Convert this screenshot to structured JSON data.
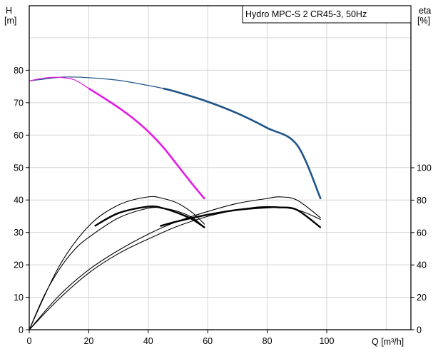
{
  "chart_data": {
    "type": "line",
    "title": "Hydro MPC-S 2 CR45-3, 50Hz",
    "left_axis_label": [
      "H",
      "[m]"
    ],
    "right_axis_label": [
      "eta",
      "[%]"
    ],
    "x_axis_label": "Q [m³/h]",
    "xlim": [
      0,
      128
    ],
    "ylim_left": [
      0,
      90
    ],
    "ylim_right": [
      0,
      200
    ],
    "x_ticks": [
      "0",
      "20",
      "40",
      "60",
      "80",
      "100"
    ],
    "x_tick_values": [
      0,
      20,
      40,
      60,
      80,
      100
    ],
    "y_ticks_left": [
      "0",
      "10",
      "20",
      "30",
      "40",
      "50",
      "60",
      "70",
      "80"
    ],
    "y_tick_values_left": [
      0,
      10,
      20,
      30,
      40,
      50,
      60,
      70,
      80
    ],
    "y_ticks_right": [
      "0",
      "20",
      "40",
      "60",
      "80",
      "100"
    ],
    "y_tick_values_right": [
      0,
      20,
      40,
      60,
      80,
      100
    ],
    "grid": true,
    "colors": {
      "blue_curve": "#1f5488",
      "magenta_curve": "#e51ae5",
      "black_curve": "#000000"
    },
    "series": [
      {
        "axis": "left",
        "color": "#1f5488",
        "width": 1.2,
        "x": [
          0,
          10,
          15,
          20,
          30,
          40,
          45
        ],
        "y": [
          76.7,
          77.8,
          77.9,
          77.7,
          76.9,
          75.3,
          74.4
        ]
      },
      {
        "axis": "left",
        "color": "#1f5488",
        "width": 2.6,
        "x": [
          45,
          50,
          60,
          70,
          80,
          90,
          98
        ],
        "y": [
          74.4,
          73.2,
          70.3,
          66.7,
          62.2,
          57.0,
          40.3
        ]
      },
      {
        "axis": "left",
        "color": "#e51ae5",
        "width": 1.2,
        "x": [
          0,
          5,
          10,
          15,
          20
        ],
        "y": [
          76.7,
          77.6,
          77.8,
          77.1,
          74.4
        ]
      },
      {
        "axis": "left",
        "color": "#e51ae5",
        "width": 2.6,
        "x": [
          20,
          25,
          30,
          35,
          40,
          45,
          50,
          55,
          59
        ],
        "y": [
          74.4,
          71.5,
          68.5,
          65.1,
          61.1,
          56.3,
          50.5,
          44.7,
          40.3
        ]
      },
      {
        "axis": "right",
        "color": "#000000",
        "width": 1.1,
        "x": [
          0,
          10,
          20,
          30,
          40,
          45,
          50,
          55,
          59
        ],
        "y": [
          0,
          39,
          64,
          77,
          82,
          81,
          78,
          72,
          65
        ]
      },
      {
        "axis": "right",
        "color": "#000000",
        "width": 1.1,
        "x": [
          0,
          5,
          10,
          15,
          20,
          30,
          40,
          45,
          50,
          55,
          59
        ],
        "y": [
          0,
          21,
          37,
          49,
          57,
          69,
          75,
          75,
          73,
          69,
          63
        ]
      },
      {
        "axis": "right",
        "color": "#000000",
        "width": 2.4,
        "x": [
          22,
          30,
          40,
          45,
          50,
          55,
          59
        ],
        "y": [
          64,
          72,
          76,
          75,
          72,
          68,
          63
        ]
      },
      {
        "axis": "right",
        "color": "#000000",
        "width": 1.1,
        "x": [
          0,
          10,
          20,
          30,
          40,
          50,
          60,
          70,
          80,
          84,
          90,
          98
        ],
        "y": [
          0,
          21,
          37,
          49,
          59,
          67,
          73,
          78,
          81,
          82,
          80,
          69
        ]
      },
      {
        "axis": "right",
        "color": "#000000",
        "width": 1.1,
        "x": [
          0,
          10,
          20,
          30,
          40,
          50,
          60,
          70,
          80,
          90,
          98
        ],
        "y": [
          0,
          19,
          35,
          47,
          56,
          64,
          70,
          74,
          76,
          74,
          68
        ]
      },
      {
        "axis": "right",
        "color": "#000000",
        "width": 2.4,
        "x": [
          44,
          50,
          60,
          70,
          80,
          84,
          90,
          98
        ],
        "y": [
          64,
          67,
          71,
          74,
          75.5,
          75.5,
          74,
          63
        ]
      }
    ]
  }
}
